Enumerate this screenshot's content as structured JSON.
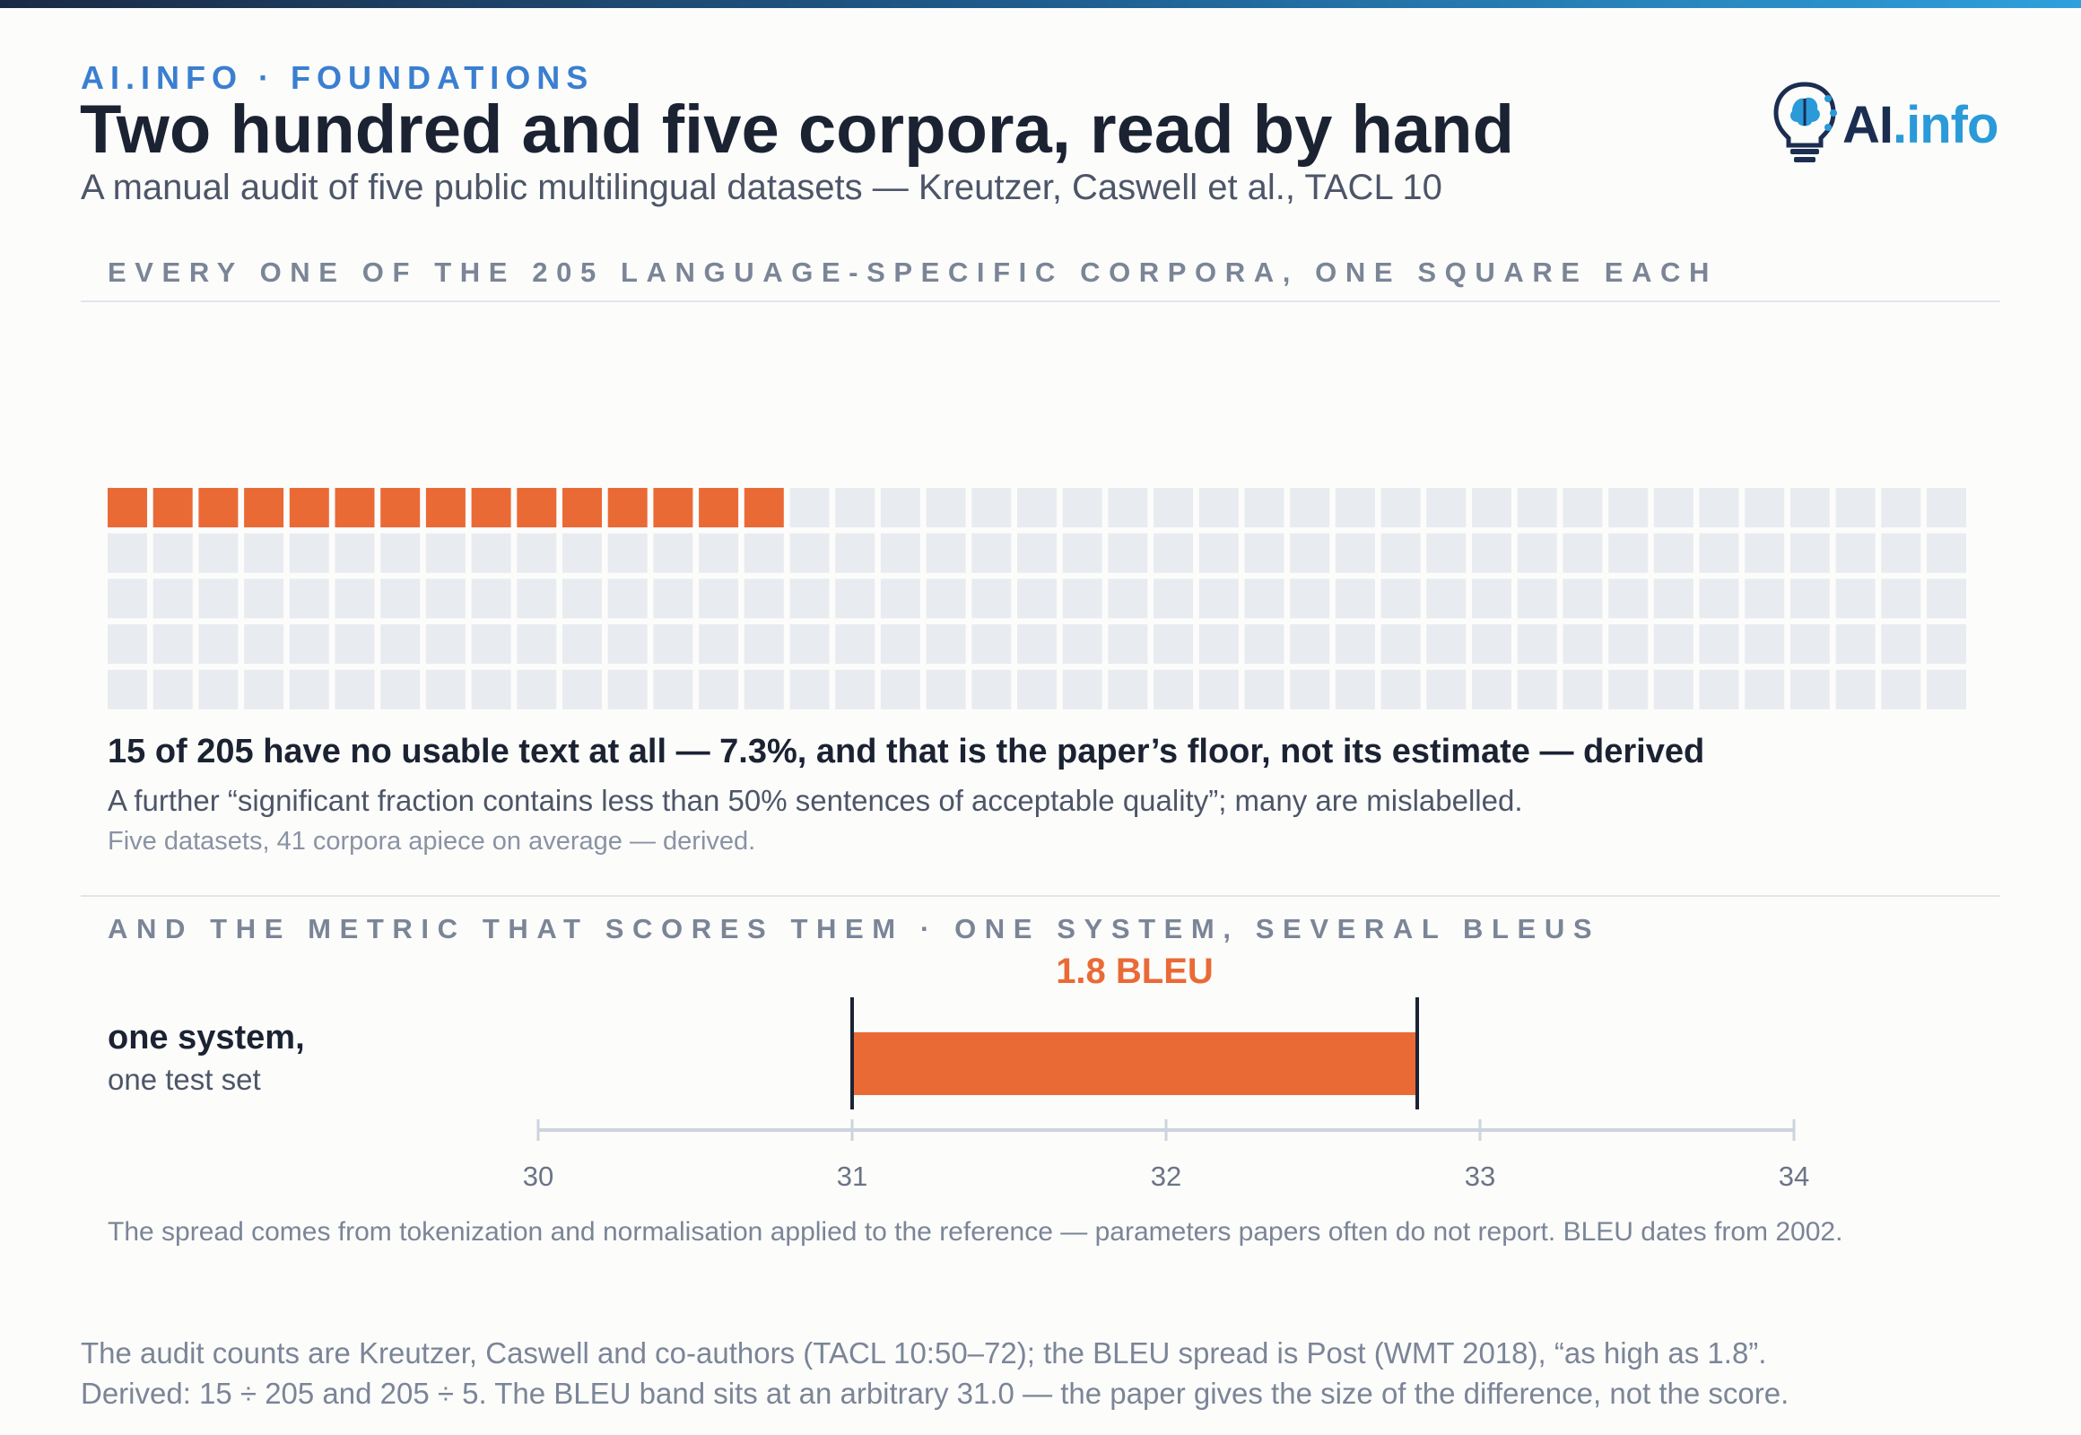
{
  "header": {
    "kicker": "AI.INFO · FOUNDATIONS",
    "title": "Two hundred and five corpora, read by hand",
    "subtitle": "A manual audit of five public multilingual datasets — Kreutzer, Caswell et al., TACL 10",
    "logo": {
      "ai": "AI",
      "dot_info": ".info"
    }
  },
  "waffle_section": {
    "label": "EVERY ONE OF THE 205 LANGUAGE-SPECIFIC CORPORA, ONE SQUARE EACH",
    "finding": "15 of 205 have no usable text at all — 7.3%, and that is the paper’s floor, not its estimate — derived",
    "finding_sub": "A further “significant fraction contains less than 50% sentences of acceptable quality”; many are mislabelled.",
    "finding_note": "Five datasets, 41 corpora apiece on average — derived."
  },
  "bleu_section": {
    "label": "AND THE METRIC THAT SCORES THEM · ONE SYSTEM, SEVERAL BLEUS",
    "row_label": "one system,",
    "row_sub": "one test set",
    "note": "The spread comes from tokenization and normalisation applied to the reference — parameters papers often do not report. BLEU dates from 2002."
  },
  "source": {
    "line1": "The audit counts are Kreutzer, Caswell and co-authors (TACL 10:50–72); the BLEU spread is Post (WMT 2018), “as high as 1.8”.",
    "line2": "Derived: 15 ÷ 205 and 205 ÷ 5. The BLEU band sits at an arbitrary 31.0 — the paper gives the size of the difference, not the score."
  },
  "colors": {
    "highlight": "#ea6a36",
    "empty_cell": "#e8ebf0",
    "axis": "#cdd4de",
    "text_dark": "#1b2333",
    "text_muted": "#7b8597"
  },
  "chart_data": [
    {
      "type": "waffle",
      "total": 205,
      "highlighted": 15,
      "columns": 41,
      "rows": 5
    },
    {
      "type": "bar",
      "orientation": "horizontal",
      "band_start": 31.0,
      "band_end": 32.8,
      "band_label": "1.8 BLEU",
      "xlim": [
        30,
        34
      ],
      "xticks": [
        30,
        31,
        32,
        33,
        34
      ],
      "grid": false
    }
  ]
}
